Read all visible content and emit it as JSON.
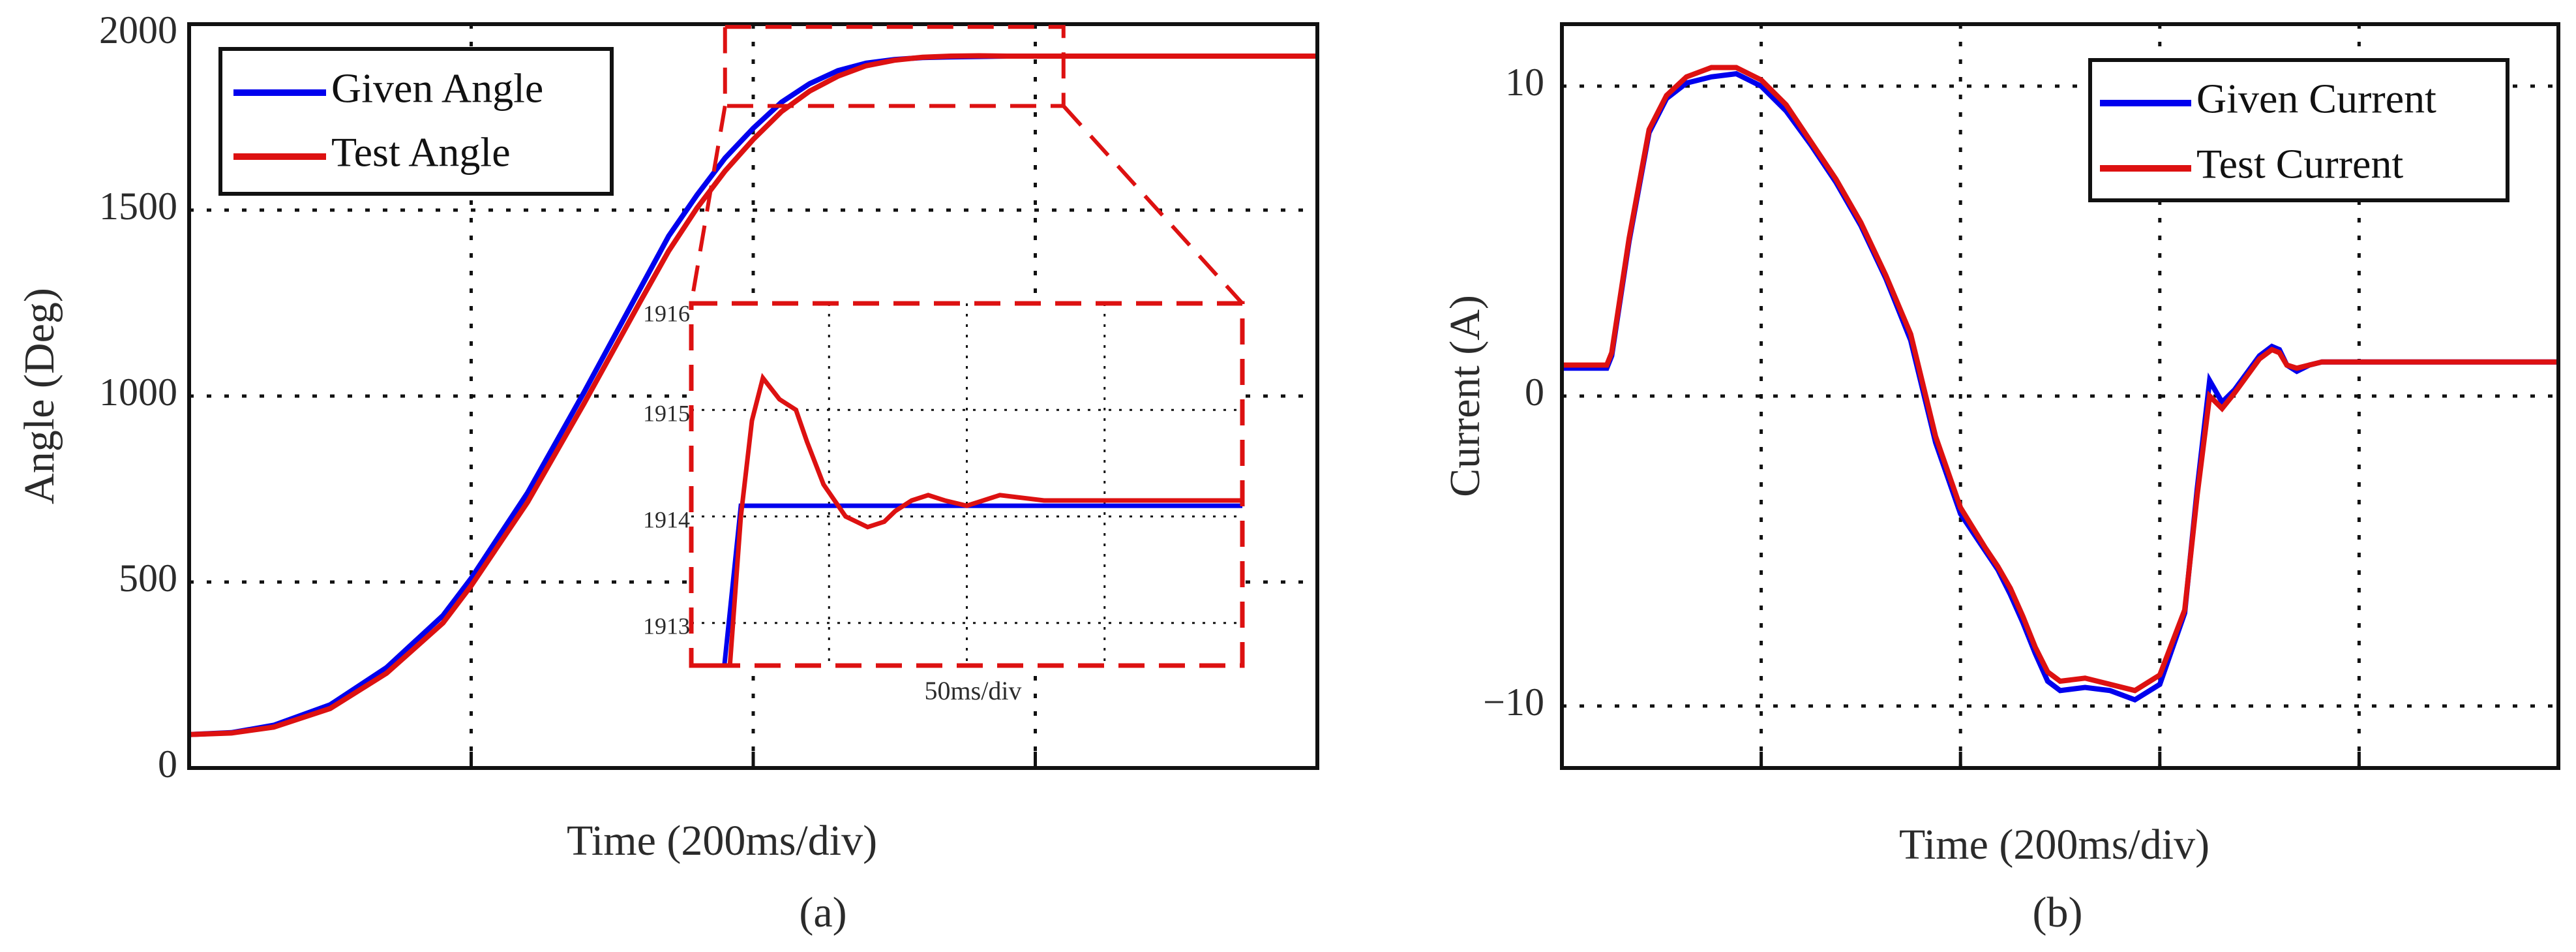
{
  "colors": {
    "given": "#0000ee",
    "test": "#dd1111",
    "grid": "#111111",
    "zoom": "#dd1111"
  },
  "chart_data": [
    {
      "type": "line",
      "panel_label": "(a)",
      "xlabel": "Time (200ms/div)",
      "ylabel": "Angle (Deg)",
      "xlim": [
        0,
        4
      ],
      "ylim": [
        0,
        2000
      ],
      "yticks": [
        0,
        500,
        1000,
        1500,
        2000
      ],
      "ytick_labels": [
        "0",
        "500",
        "1000",
        "1500",
        "2000"
      ],
      "grid": true,
      "legend": "top-left",
      "series": [
        {
          "name": "Given Angle",
          "color": "#0000ee",
          "x": [
            0,
            0.15,
            0.3,
            0.5,
            0.7,
            0.9,
            1.0,
            1.2,
            1.4,
            1.6,
            1.7,
            1.8,
            1.9,
            2.0,
            2.1,
            2.2,
            2.3,
            2.4,
            2.5,
            2.6,
            2.7,
            2.8,
            2.9,
            3.0,
            3.5,
            4.0
          ],
          "y": [
            90,
            95,
            115,
            170,
            270,
            410,
            510,
            740,
            1010,
            1290,
            1430,
            1540,
            1640,
            1720,
            1790,
            1840,
            1875,
            1895,
            1905,
            1910,
            1912,
            1913,
            1914,
            1914,
            1914,
            1914
          ]
        },
        {
          "name": "Test Angle",
          "color": "#dd1111",
          "x": [
            0,
            0.15,
            0.3,
            0.5,
            0.7,
            0.9,
            1.0,
            1.2,
            1.4,
            1.6,
            1.7,
            1.8,
            1.9,
            2.0,
            2.1,
            2.2,
            2.3,
            2.4,
            2.5,
            2.6,
            2.7,
            2.8,
            2.9,
            3.0,
            3.5,
            4.0
          ],
          "y": [
            90,
            94,
            110,
            160,
            255,
            390,
            490,
            715,
            980,
            1255,
            1390,
            1505,
            1605,
            1690,
            1765,
            1820,
            1860,
            1888,
            1903,
            1911,
            1914,
            1915,
            1914,
            1914,
            1914,
            1914
          ]
        }
      ],
      "zoom_box": {
        "x": [
          1.9,
          3.1
        ],
        "y": [
          1780,
          1940
        ]
      },
      "inset": {
        "xlim": [
          0,
          5
        ],
        "ylim": [
          1912.6,
          1916.0
        ],
        "yticks": [
          1913,
          1914,
          1915,
          1916
        ],
        "ytick_labels": [
          "1913",
          "1914",
          "1915",
          "1916"
        ],
        "note": "50ms/div",
        "series": [
          {
            "name": "Given Angle",
            "color": "#0000ee",
            "x": [
              0.0,
              0.3,
              0.45,
              0.9,
              1.5,
              2.5,
              3.5,
              4.5,
              5.0
            ],
            "y": [
              1912.6,
              1912.6,
              1914.1,
              1914.1,
              1914.1,
              1914.1,
              1914.1,
              1914.1,
              1914.1
            ]
          },
          {
            "name": "Test Angle",
            "color": "#dd1111",
            "x": [
              0.0,
              0.35,
              0.45,
              0.55,
              0.65,
              0.8,
              0.95,
              1.05,
              1.2,
              1.4,
              1.6,
              1.75,
              1.85,
              2.0,
              2.15,
              2.3,
              2.5,
              2.8,
              3.2,
              4.0,
              5.0
            ],
            "y": [
              1912.6,
              1912.6,
              1914.0,
              1914.9,
              1915.3,
              1915.1,
              1915.0,
              1914.7,
              1914.3,
              1914.0,
              1913.9,
              1913.95,
              1914.05,
              1914.15,
              1914.2,
              1914.15,
              1914.1,
              1914.2,
              1914.15,
              1914.15,
              1914.15
            ]
          }
        ]
      }
    },
    {
      "type": "line",
      "panel_label": "(b)",
      "xlabel": "Time (200ms/div)",
      "ylabel": "Current (A)",
      "xlim": [
        0,
        4
      ],
      "ylim": [
        -12,
        12
      ],
      "yticks": [
        -10,
        0,
        10
      ],
      "ytick_labels": [
        "−10",
        "0",
        "10"
      ],
      "grid": true,
      "legend": "top-right",
      "series": [
        {
          "name": "Given Current",
          "color": "#0000ee",
          "x": [
            0,
            0.18,
            0.2,
            0.27,
            0.35,
            0.42,
            0.5,
            0.6,
            0.7,
            0.8,
            0.9,
            1.0,
            1.1,
            1.2,
            1.3,
            1.4,
            1.5,
            1.6,
            1.7,
            1.75,
            1.8,
            1.85,
            1.9,
            1.95,
            2.0,
            2.1,
            2.2,
            2.3,
            2.4,
            2.5,
            2.55,
            2.6,
            2.65,
            2.7,
            2.8,
            2.85,
            2.88,
            2.91,
            2.95,
            3.0,
            3.05,
            3.1,
            3.2,
            3.3,
            4.0
          ],
          "y": [
            0.9,
            0.9,
            1.3,
            5.0,
            8.5,
            9.6,
            10.1,
            10.3,
            10.4,
            10.0,
            9.2,
            8.1,
            6.9,
            5.5,
            3.8,
            1.8,
            -1.5,
            -3.8,
            -5.0,
            -5.6,
            -6.4,
            -7.3,
            -8.3,
            -9.2,
            -9.5,
            -9.4,
            -9.5,
            -9.8,
            -9.3,
            -7.0,
            -3.0,
            0.5,
            -0.2,
            0.2,
            1.3,
            1.6,
            1.5,
            1.0,
            0.8,
            1.0,
            1.1,
            1.1,
            1.1,
            1.1,
            1.1
          ]
        },
        {
          "name": "Test Current",
          "color": "#dd1111",
          "x": [
            0,
            0.18,
            0.2,
            0.27,
            0.35,
            0.42,
            0.5,
            0.6,
            0.7,
            0.8,
            0.9,
            1.0,
            1.1,
            1.2,
            1.3,
            1.4,
            1.5,
            1.6,
            1.7,
            1.75,
            1.8,
            1.85,
            1.9,
            1.95,
            2.0,
            2.1,
            2.2,
            2.3,
            2.4,
            2.5,
            2.55,
            2.6,
            2.65,
            2.7,
            2.8,
            2.85,
            2.88,
            2.91,
            2.95,
            3.0,
            3.05,
            3.1,
            3.2,
            3.3,
            4.0
          ],
          "y": [
            1.0,
            1.0,
            1.4,
            5.1,
            8.6,
            9.7,
            10.3,
            10.6,
            10.6,
            10.2,
            9.4,
            8.2,
            7.0,
            5.6,
            3.9,
            2.0,
            -1.3,
            -3.6,
            -4.9,
            -5.5,
            -6.2,
            -7.1,
            -8.1,
            -8.9,
            -9.2,
            -9.1,
            -9.3,
            -9.5,
            -9.0,
            -6.9,
            -3.2,
            0.0,
            -0.4,
            0.1,
            1.2,
            1.5,
            1.4,
            1.0,
            0.9,
            1.0,
            1.1,
            1.1,
            1.1,
            1.1,
            1.1
          ]
        }
      ]
    }
  ]
}
